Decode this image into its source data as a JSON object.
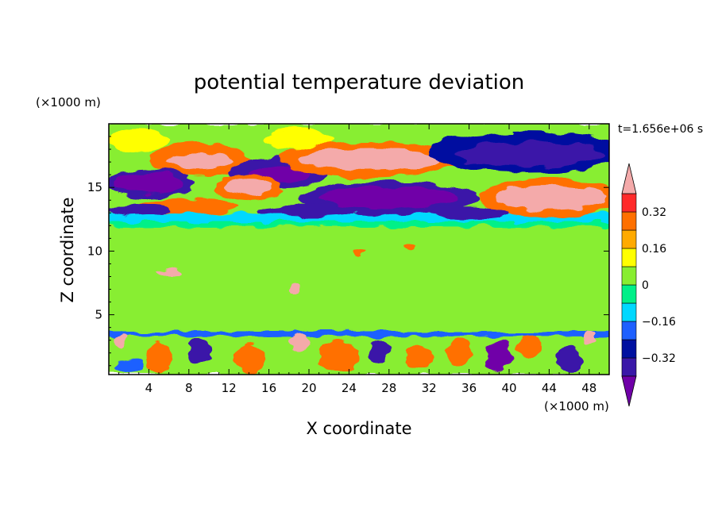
{
  "chart_data": {
    "type": "heatmap",
    "title": "potential temperature deviation",
    "xlabel": "X coordinate",
    "ylabel": "Z coordinate",
    "x_unit": "(×1000 m)",
    "y_unit": "(×1000 m)",
    "time_label": "t=1.656e+06 s",
    "xlim": [
      0,
      50
    ],
    "ylim": [
      0.3,
      20
    ],
    "x_ticks": [
      4,
      8,
      12,
      16,
      20,
      24,
      28,
      32,
      36,
      40,
      44,
      48
    ],
    "y_ticks": [
      5,
      10,
      15
    ],
    "colorbar": {
      "levels": [
        -0.48,
        -0.4,
        -0.32,
        -0.24,
        -0.16,
        -0.08,
        0,
        0.08,
        0.16,
        0.24,
        0.32,
        0.4,
        0.48
      ],
      "tick_values": [
        0.32,
        0.16,
        0,
        -0.16,
        -0.32
      ],
      "tick_labels": [
        "0.32",
        "0.16",
        "0",
        "−0.16",
        "−0.32"
      ],
      "colors": [
        "#7000a8",
        "#3a18a8",
        "#0010a0",
        "#1e60ff",
        "#00d8ff",
        "#00f088",
        "#88ee30",
        "#ffff00",
        "#ffaa00",
        "#ff7000",
        "#ff2a2a",
        "#f4aaaa"
      ],
      "extend": "both"
    },
    "features": [
      {
        "type": "band",
        "x": [
          0,
          50
        ],
        "z": [
          0.3,
          20
        ],
        "value": 0
      },
      {
        "type": "band",
        "x": [
          0,
          50
        ],
        "z": [
          17.6,
          20
        ],
        "value": 0.05
      },
      {
        "type": "band",
        "x": [
          0,
          50
        ],
        "z": [
          12.3,
          13
        ],
        "value": -0.12
      },
      {
        "type": "band",
        "x": [
          0,
          50
        ],
        "z": [
          11.9,
          12.3
        ],
        "value": -0.05
      },
      {
        "type": "band",
        "x": [
          0,
          50
        ],
        "z": [
          8,
          11.5
        ],
        "value": 0.05
      },
      {
        "type": "band",
        "x": [
          0,
          50
        ],
        "z": [
          0.3,
          3.3
        ],
        "value": 0
      },
      {
        "type": "band",
        "x": [
          0,
          50
        ],
        "z": [
          3.3,
          3.7
        ],
        "value": -0.2
      },
      {
        "type": "blob",
        "x": 3,
        "z": 18.7,
        "rx": 3,
        "ry": 0.9,
        "value": 0.1
      },
      {
        "type": "blob",
        "x": 19,
        "z": 18.8,
        "rx": 3.5,
        "ry": 0.8,
        "value": 0.1
      },
      {
        "type": "blob",
        "x": 9,
        "z": 17.2,
        "rx": 5,
        "ry": 1.3,
        "value": 0.25
      },
      {
        "type": "blob",
        "x": 9,
        "z": 17.1,
        "rx": 3.2,
        "ry": 0.6,
        "value": 0.45
      },
      {
        "type": "blob",
        "x": 17,
        "z": 16.1,
        "rx": 5,
        "ry": 1.2,
        "value": -0.35
      },
      {
        "type": "blob",
        "x": 17,
        "z": 16.0,
        "rx": 3,
        "ry": 0.6,
        "value": -0.45
      },
      {
        "type": "blob",
        "x": 26,
        "z": 17.2,
        "rx": 9,
        "ry": 1.4,
        "value": 0.25
      },
      {
        "type": "blob",
        "x": 26,
        "z": 17.2,
        "rx": 7,
        "ry": 0.9,
        "value": 0.45
      },
      {
        "type": "blob",
        "x": 42,
        "z": 17.8,
        "rx": 10,
        "ry": 1.6,
        "value": -0.25
      },
      {
        "type": "blob",
        "x": 42,
        "z": 17.6,
        "rx": 7.5,
        "ry": 1.0,
        "value": -0.4
      },
      {
        "type": "blob",
        "x": 4,
        "z": 15.3,
        "rx": 4.5,
        "ry": 1.1,
        "value": -0.35
      },
      {
        "type": "blob",
        "x": 4,
        "z": 15.3,
        "rx": 3.5,
        "ry": 0.8,
        "value": -0.45
      },
      {
        "type": "blob",
        "x": 14,
        "z": 15.0,
        "rx": 3.4,
        "ry": 1.0,
        "value": 0.25
      },
      {
        "type": "blob",
        "x": 14,
        "z": 15.0,
        "rx": 2.4,
        "ry": 0.6,
        "value": 0.45
      },
      {
        "type": "blob",
        "x": 28,
        "z": 14.2,
        "rx": 9,
        "ry": 1.3,
        "value": -0.35
      },
      {
        "type": "blob",
        "x": 28,
        "z": 14.2,
        "rx": 7,
        "ry": 0.8,
        "value": -0.45
      },
      {
        "type": "blob",
        "x": 44,
        "z": 14.2,
        "rx": 7,
        "ry": 1.5,
        "value": 0.25
      },
      {
        "type": "blob",
        "x": 44,
        "z": 14.2,
        "rx": 5.5,
        "ry": 1.0,
        "value": 0.45
      },
      {
        "type": "blob",
        "x": 8,
        "z": 13.5,
        "rx": 5,
        "ry": 0.6,
        "value": 0.3
      },
      {
        "type": "blob",
        "x": 20,
        "z": 13.2,
        "rx": 5,
        "ry": 0.5,
        "value": -0.4
      },
      {
        "type": "blob",
        "x": 3,
        "z": 13.2,
        "rx": 3,
        "ry": 0.4,
        "value": -0.4
      },
      {
        "type": "blob",
        "x": 36,
        "z": 13.0,
        "rx": 4,
        "ry": 0.5,
        "value": -0.4
      },
      {
        "type": "blob",
        "x": 6,
        "z": 8.3,
        "rx": 1.2,
        "ry": 0.3,
        "value": 0.45
      },
      {
        "type": "blob",
        "x": 25,
        "z": 10.0,
        "rx": 0.6,
        "ry": 0.3,
        "value": 0.3
      },
      {
        "type": "blob",
        "x": 30,
        "z": 10.4,
        "rx": 0.5,
        "ry": 0.3,
        "value": 0.3
      },
      {
        "type": "blob",
        "x": 18.5,
        "z": 7.0,
        "rx": 0.6,
        "ry": 0.4,
        "value": 0.45
      },
      {
        "type": "blob",
        "x": 1.2,
        "z": 2.9,
        "rx": 0.6,
        "ry": 0.6,
        "value": 0.45
      },
      {
        "type": "blob",
        "x": 48,
        "z": 3.2,
        "rx": 0.6,
        "ry": 0.5,
        "value": 0.45
      },
      {
        "type": "blob",
        "x": 5,
        "z": 1.6,
        "rx": 1.3,
        "ry": 1.2,
        "value": 0.3
      },
      {
        "type": "blob",
        "x": 9,
        "z": 2.2,
        "rx": 1.1,
        "ry": 1.0,
        "value": -0.4
      },
      {
        "type": "blob",
        "x": 14,
        "z": 1.6,
        "rx": 1.4,
        "ry": 1.2,
        "value": 0.25
      },
      {
        "type": "blob",
        "x": 19,
        "z": 2.8,
        "rx": 1.0,
        "ry": 0.7,
        "value": 0.45
      },
      {
        "type": "blob",
        "x": 23,
        "z": 1.7,
        "rx": 2.0,
        "ry": 1.2,
        "value": 0.3
      },
      {
        "type": "blob",
        "x": 27,
        "z": 2.2,
        "rx": 1.0,
        "ry": 1.0,
        "value": -0.4
      },
      {
        "type": "blob",
        "x": 31,
        "z": 1.6,
        "rx": 1.4,
        "ry": 1.0,
        "value": 0.25
      },
      {
        "type": "blob",
        "x": 35,
        "z": 2.0,
        "rx": 1.2,
        "ry": 1.1,
        "value": 0.3
      },
      {
        "type": "blob",
        "x": 39,
        "z": 1.8,
        "rx": 1.3,
        "ry": 1.2,
        "value": -0.45
      },
      {
        "type": "blob",
        "x": 42,
        "z": 2.5,
        "rx": 1.1,
        "ry": 0.9,
        "value": 0.3
      },
      {
        "type": "blob",
        "x": 46,
        "z": 1.5,
        "rx": 1.2,
        "ry": 1.0,
        "value": -0.35
      },
      {
        "type": "blob",
        "x": 2,
        "z": 1.0,
        "rx": 1.5,
        "ry": 0.6,
        "value": -0.2
      }
    ]
  }
}
